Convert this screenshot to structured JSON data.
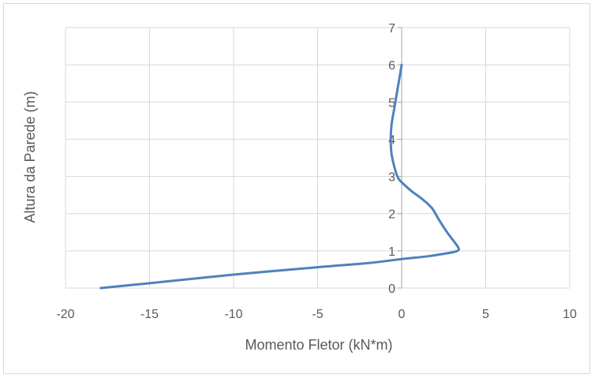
{
  "chart_data": {
    "type": "line",
    "title": "",
    "xlabel": "Momento Fletor (kN*m)",
    "ylabel": "Altura da Parede (m)",
    "xlim": [
      -20,
      10
    ],
    "ylim": [
      0,
      7
    ],
    "x_ticks": [
      -20,
      -15,
      -10,
      -5,
      0,
      5,
      10
    ],
    "y_ticks": [
      0,
      1,
      2,
      3,
      4,
      5,
      6,
      7
    ],
    "x_tick_labels": [
      "-20",
      "-15",
      "-10",
      "-5",
      "0",
      "5",
      "10"
    ],
    "y_tick_labels": [
      "0",
      "1",
      "2",
      "3",
      "4",
      "5",
      "6",
      "7"
    ],
    "grid": true,
    "legend": "none",
    "colors": {
      "series": "#4f81bd",
      "grid": "#d9d9d9",
      "zero_axis": "#a6a6a6",
      "text": "#595959"
    },
    "series": [
      {
        "points": [
          [
            -17.9,
            0.0
          ],
          [
            -15.0,
            0.13
          ],
          [
            -10.0,
            0.36
          ],
          [
            -5.0,
            0.56
          ],
          [
            -2.0,
            0.67
          ],
          [
            0.0,
            0.78
          ],
          [
            1.5,
            0.85
          ],
          [
            2.5,
            0.92
          ],
          [
            3.2,
            0.98
          ],
          [
            3.4,
            1.05
          ],
          [
            3.2,
            1.2
          ],
          [
            2.7,
            1.5
          ],
          [
            2.2,
            1.85
          ],
          [
            1.8,
            2.15
          ],
          [
            1.2,
            2.4
          ],
          [
            0.6,
            2.6
          ],
          [
            0.1,
            2.8
          ],
          [
            -0.2,
            2.95
          ],
          [
            -0.4,
            3.2
          ],
          [
            -0.6,
            3.6
          ],
          [
            -0.65,
            4.0
          ],
          [
            -0.6,
            4.4
          ],
          [
            -0.45,
            4.8
          ],
          [
            -0.3,
            5.2
          ],
          [
            -0.15,
            5.6
          ],
          [
            0.0,
            6.0
          ]
        ]
      }
    ]
  }
}
